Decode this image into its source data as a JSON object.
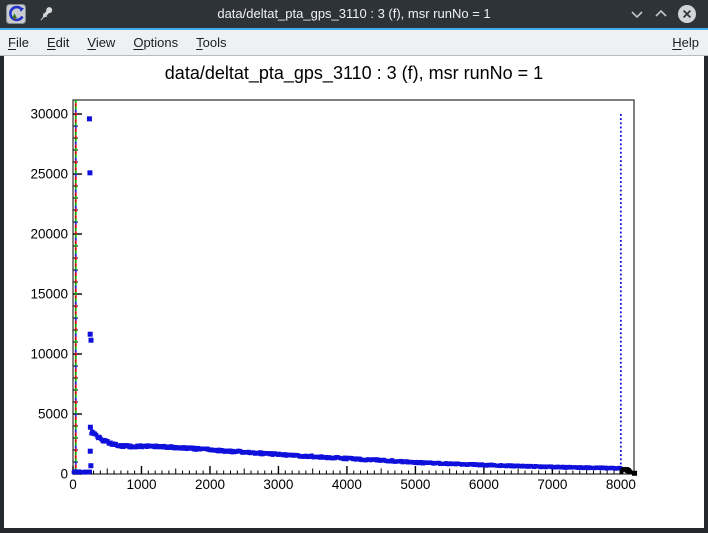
{
  "window": {
    "title": "data/deltat_pta_gps_3110 : 3 (f), msr runNo = 1",
    "controls": {
      "minimize": "chevron-down",
      "maximize": "chevron-up",
      "close": "x-circle"
    },
    "accent_color": "#3daee9",
    "titlebar_color": "#2e3338"
  },
  "menubar": {
    "items": [
      {
        "key": "file",
        "first": "F",
        "rest": "ile"
      },
      {
        "key": "edit",
        "first": "E",
        "rest": "dit"
      },
      {
        "key": "view",
        "first": "V",
        "rest": "iew"
      },
      {
        "key": "options",
        "first": "O",
        "rest": "ptions"
      },
      {
        "key": "tools",
        "first": "T",
        "rest": "ools"
      }
    ],
    "help": {
      "first": "H",
      "rest": "elp"
    }
  },
  "chart_data": {
    "type": "scatter",
    "title": "data/deltat_pta_gps_3110 : 3 (f), msr runNo = 1",
    "xlabel": "",
    "ylabel": "",
    "xlim": [
      0,
      8192
    ],
    "ylim": [
      0,
      31170
    ],
    "x_ticks": [
      0,
      1000,
      2000,
      3000,
      4000,
      5000,
      6000,
      7000,
      8000
    ],
    "x_minor_step": 100,
    "x_medium_step": 500,
    "y_ticks": [
      0,
      5000,
      10000,
      15000,
      20000,
      25000,
      30000
    ],
    "y_minor_step": 1000,
    "grid": false,
    "legend": false,
    "axis_color": "#000000",
    "marker_color": "#1010dc",
    "series": [
      {
        "name": "background-flat",
        "color": "#1010dc",
        "style": "band",
        "points_spec": {
          "x_start": 8,
          "x_end": 256,
          "level": 170,
          "scatter": 60
        }
      },
      {
        "name": "t0-spike-outliers",
        "color": "#1010dc",
        "style": "markers",
        "points": [
          [
            240,
            29600
          ],
          [
            247,
            25100
          ],
          [
            251,
            11650
          ],
          [
            263,
            11150
          ],
          [
            254,
            3900
          ],
          [
            252,
            1900
          ],
          [
            261,
            690
          ]
        ]
      },
      {
        "name": "decay-band",
        "color": "#1010dc",
        "style": "band",
        "control_points": [
          [
            266,
            3500
          ],
          [
            290,
            3420
          ],
          [
            360,
            3090
          ],
          [
            450,
            2780
          ],
          [
            560,
            2520
          ],
          [
            700,
            2360
          ],
          [
            850,
            2300
          ],
          [
            1000,
            2290
          ],
          [
            1150,
            2310
          ],
          [
            1300,
            2290
          ],
          [
            1500,
            2230
          ],
          [
            1700,
            2150
          ],
          [
            2000,
            2020
          ],
          [
            2300,
            1900
          ],
          [
            2600,
            1780
          ],
          [
            3000,
            1630
          ],
          [
            3400,
            1490
          ],
          [
            3800,
            1360
          ],
          [
            4200,
            1230
          ],
          [
            4600,
            1110
          ],
          [
            5000,
            960
          ],
          [
            5400,
            870
          ],
          [
            5800,
            790
          ],
          [
            6200,
            710
          ],
          [
            6600,
            645
          ],
          [
            7000,
            585
          ],
          [
            7400,
            535
          ],
          [
            7800,
            495
          ],
          [
            8000,
            475
          ]
        ]
      },
      {
        "name": "overflow-black",
        "color": "#000000",
        "style": "band",
        "points_spec": {
          "x_start": 8008,
          "x_end": 8150,
          "level": 300,
          "scatter": 150
        }
      },
      {
        "name": "last-bin",
        "color": "#000000",
        "style": "markers",
        "points": [
          [
            8200,
            60
          ]
        ]
      }
    ],
    "annotations": [
      {
        "name": "t0-marker-dashed-line",
        "type": "vline",
        "x": 40,
        "y_from": 0,
        "y_to": 31170,
        "style": "dashed-multicolor",
        "colors": [
          "#00b400",
          "#e00000",
          "#00b400",
          "#2020e0",
          "#e00000"
        ]
      },
      {
        "name": "last-good-bin-dotted-line",
        "type": "vline",
        "x": 8000,
        "y_from": 0,
        "y_to": 30000,
        "style": "dotted",
        "colors": [
          "#1010dc"
        ]
      }
    ]
  }
}
